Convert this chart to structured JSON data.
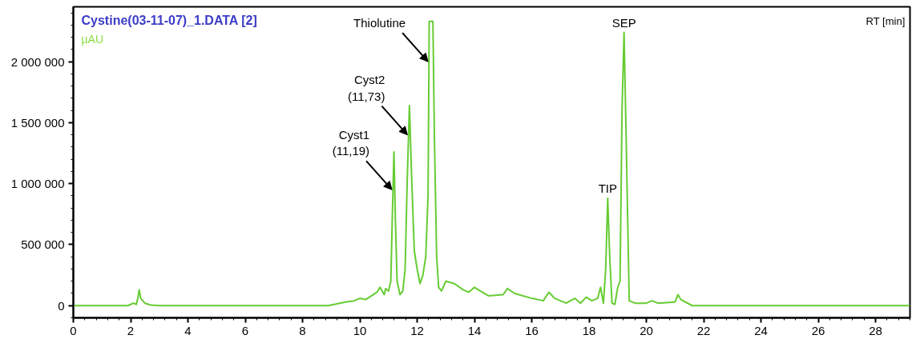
{
  "chart_data": {
    "type": "line",
    "title": "Cystine(03-11-07)_1.DATA [2]",
    "ylabel": "µAU",
    "xlabel": "RT [min]",
    "xlim": [
      0,
      29.2
    ],
    "ylim": [
      -100000,
      2450000
    ],
    "xticks": [
      0,
      2,
      4,
      6,
      8,
      10,
      12,
      14,
      16,
      18,
      20,
      22,
      24,
      26,
      28
    ],
    "yticks": [
      0,
      {
        "value": 500000,
        "label": "500 000"
      },
      {
        "value": 1000000,
        "label": "1 000 000"
      },
      {
        "value": 1500000,
        "label": "1 500 000"
      },
      {
        "value": 2000000,
        "label": "2 000 000"
      }
    ],
    "grid": false,
    "marker": "none",
    "line_style": "solid",
    "series": [
      {
        "color": "#66cc33",
        "x": [
          0,
          1.9,
          2.0,
          2.1,
          2.2,
          2.25,
          2.3,
          2.35,
          2.5,
          2.7,
          3,
          8.9,
          9.1,
          9.5,
          9.8,
          10.0,
          10.2,
          10.4,
          10.6,
          10.7,
          10.8,
          10.85,
          10.9,
          11.0,
          11.08,
          11.13,
          11.19,
          11.24,
          11.3,
          11.4,
          11.5,
          11.58,
          11.65,
          11.73,
          11.8,
          11.9,
          12.0,
          12.1,
          12.2,
          12.3,
          12.38,
          12.42,
          12.55,
          12.6,
          12.68,
          12.75,
          12.85,
          13.0,
          13.3,
          13.6,
          13.8,
          14.0,
          14.2,
          14.5,
          15.0,
          15.15,
          15.4,
          16.0,
          16.4,
          16.6,
          16.8,
          17.2,
          17.5,
          17.7,
          17.9,
          18.1,
          18.3,
          18.4,
          18.5,
          18.58,
          18.65,
          18.72,
          18.8,
          18.9,
          19.0,
          19.08,
          19.15,
          19.22,
          19.3,
          19.4,
          19.6,
          20.0,
          20.2,
          20.4,
          21.0,
          21.1,
          21.2,
          21.6,
          29.2
        ],
        "values": [
          0,
          0,
          10000,
          20000,
          10000,
          60000,
          130000,
          60000,
          20000,
          5000,
          0,
          0,
          10000,
          30000,
          40000,
          60000,
          50000,
          80000,
          110000,
          150000,
          110000,
          90000,
          140000,
          120000,
          200000,
          700000,
          1260000,
          700000,
          200000,
          90000,
          120000,
          300000,
          1000000,
          1640000,
          1100000,
          450000,
          300000,
          180000,
          250000,
          400000,
          900000,
          2330000,
          2330000,
          1400000,
          400000,
          150000,
          120000,
          200000,
          180000,
          130000,
          110000,
          150000,
          120000,
          80000,
          90000,
          140000,
          100000,
          60000,
          40000,
          110000,
          60000,
          20000,
          60000,
          20000,
          70000,
          40000,
          60000,
          150000,
          20000,
          300000,
          880000,
          400000,
          20000,
          10000,
          150000,
          200000,
          1600000,
          2240000,
          1300000,
          40000,
          20000,
          20000,
          40000,
          20000,
          30000,
          90000,
          50000,
          0,
          0
        ]
      }
    ],
    "annotations": [
      {
        "text": "Thiolutine",
        "x": 12.38,
        "y": 2000000
      },
      {
        "text": "Cyst2\n(11,73)",
        "x": 11.66,
        "y": 1400000
      },
      {
        "text": "Cyst1\n(11,19)",
        "x": 11.12,
        "y": 950000
      },
      {
        "text": "TIP",
        "x": 18.65,
        "y": 880000
      },
      {
        "text": "SEP",
        "x": 19.22,
        "y": 2240000
      }
    ]
  }
}
